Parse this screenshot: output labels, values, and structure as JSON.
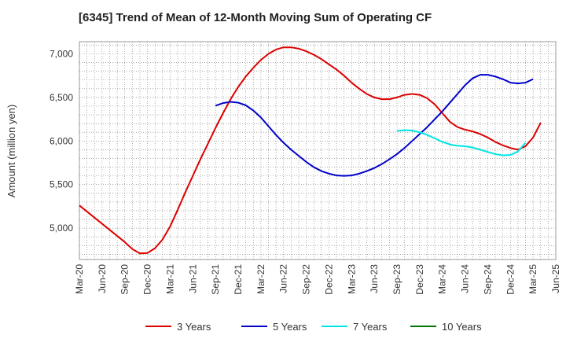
{
  "chart_data": {
    "type": "line",
    "title": "[6345]  Trend of Mean of 12-Month Moving Sum of Operating CF",
    "xlabel": "",
    "ylabel": "Amount (million yen)",
    "ylim": [
      4640,
      7140
    ],
    "yticks": [
      5000,
      5500,
      6000,
      6500,
      7000
    ],
    "ytick_labels": [
      "5,000",
      "5,500",
      "6,000",
      "6,500",
      "7,000"
    ],
    "xticks": [
      "Mar-20",
      "Jun-20",
      "Sep-20",
      "Dec-20",
      "Mar-21",
      "Jun-21",
      "Sep-21",
      "Dec-21",
      "Mar-22",
      "Jun-22",
      "Sep-22",
      "Dec-22",
      "Mar-23",
      "Jun-23",
      "Sep-23",
      "Dec-23",
      "Mar-24",
      "Jun-24",
      "Sep-24",
      "Dec-24",
      "Mar-25",
      "Jun-25"
    ],
    "grid": true,
    "legend_position": "bottom",
    "series": [
      {
        "name": "3 Years",
        "color": "#dd0000",
        "start": "Mar-20",
        "values": [
          5260,
          5190,
          5120,
          5050,
          4980,
          4910,
          4840,
          4760,
          4710,
          4715,
          4770,
          4870,
          5020,
          5210,
          5410,
          5600,
          5790,
          5970,
          6150,
          6320,
          6480,
          6620,
          6740,
          6840,
          6930,
          7000,
          7050,
          7075,
          7075,
          7060,
          7030,
          6990,
          6940,
          6880,
          6820,
          6750,
          6670,
          6600,
          6540,
          6500,
          6480,
          6480,
          6500,
          6530,
          6540,
          6530,
          6490,
          6420,
          6320,
          6220,
          6160,
          6130,
          6110,
          6080,
          6040,
          5990,
          5950,
          5920,
          5900,
          5940,
          6040,
          6210
        ]
      },
      {
        "name": "5 Years",
        "color": "#0000cc",
        "start": "Mar-20",
        "values": [
          null,
          null,
          null,
          null,
          null,
          null,
          null,
          null,
          null,
          null,
          null,
          null,
          null,
          null,
          null,
          null,
          null,
          null,
          6405,
          6435,
          6450,
          6440,
          6410,
          6350,
          6270,
          6170,
          6070,
          5980,
          5900,
          5830,
          5760,
          5700,
          5655,
          5625,
          5605,
          5600,
          5605,
          5625,
          5655,
          5690,
          5735,
          5790,
          5850,
          5920,
          6000,
          6080,
          6160,
          6250,
          6340,
          6440,
          6540,
          6640,
          6720,
          6760,
          6760,
          6740,
          6710,
          6670,
          6660,
          6670,
          6710
        ]
      },
      {
        "name": "7 Years",
        "color": "#00e5e5",
        "start": "Mar-20",
        "values": [
          null,
          null,
          null,
          null,
          null,
          null,
          null,
          null,
          null,
          null,
          null,
          null,
          null,
          null,
          null,
          null,
          null,
          null,
          null,
          null,
          null,
          null,
          null,
          null,
          null,
          null,
          null,
          null,
          null,
          null,
          null,
          null,
          null,
          null,
          null,
          null,
          null,
          null,
          null,
          null,
          null,
          null,
          6115,
          6125,
          6120,
          6100,
          6070,
          6030,
          5990,
          5960,
          5945,
          5940,
          5925,
          5900,
          5875,
          5850,
          5835,
          5840,
          5880,
          5980
        ]
      },
      {
        "name": "10 Years",
        "color": "#007700",
        "start": "Mar-20",
        "values": []
      }
    ]
  }
}
